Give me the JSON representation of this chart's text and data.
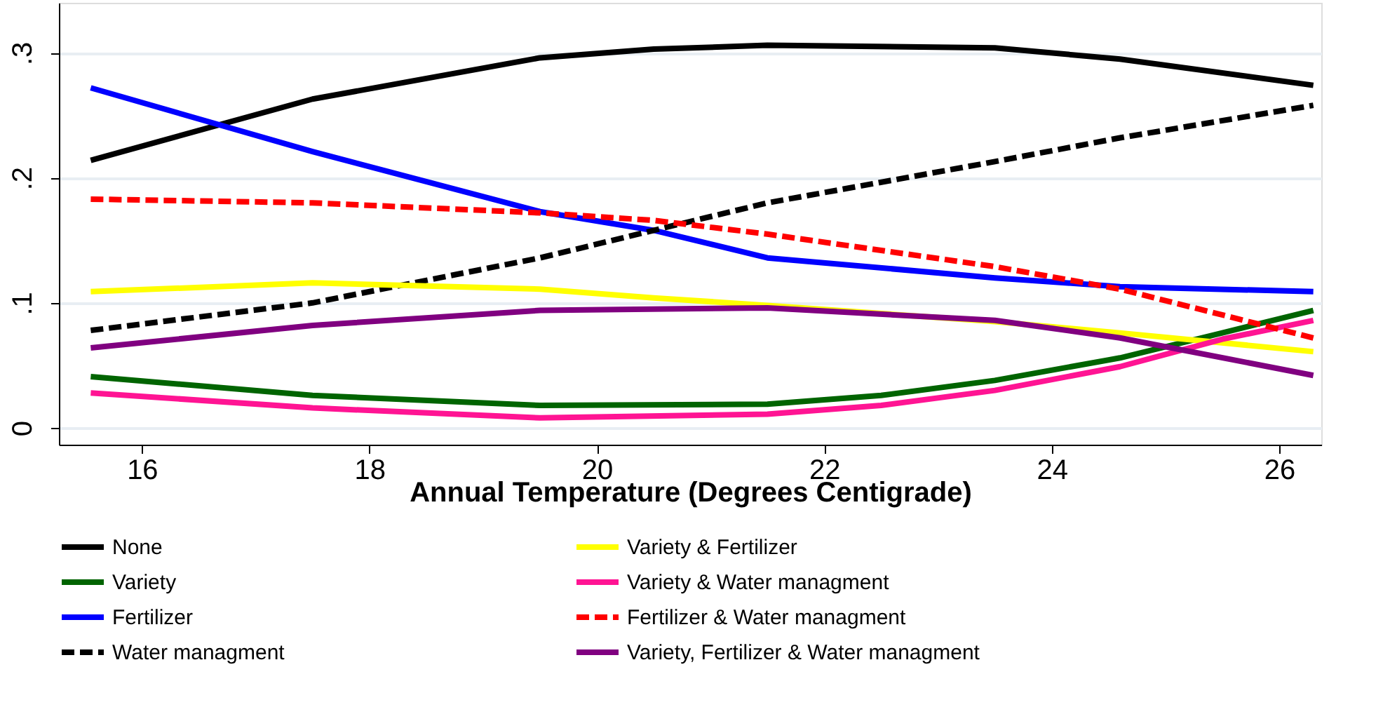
{
  "chart_data": {
    "type": "line",
    "xlabel": "Annual Temperature (Degrees Centigrade)",
    "xlim": [
      15.27,
      26.37
    ],
    "xticks": [
      16,
      18,
      20,
      22,
      24,
      26
    ],
    "ylim": [
      -0.0134,
      0.34
    ],
    "yticks": [
      {
        "value": 0,
        "label": "0"
      },
      {
        "value": 0.1,
        "label": ".1"
      },
      {
        "value": 0.2,
        "label": ".2"
      },
      {
        "value": 0.3,
        "label": ".3"
      }
    ],
    "grid": "y",
    "legend": "bottom",
    "line_style": "solid",
    "series": [
      {
        "name": "None",
        "color": "#000000",
        "x": [
          15.55,
          17.5,
          19.5,
          20.5,
          21.5,
          23.5,
          24.6,
          26.3
        ],
        "values": [
          0.214,
          0.263,
          0.296,
          0.303,
          0.306,
          0.304,
          0.295,
          0.274
        ]
      },
      {
        "name": "Variety",
        "color": "#006400",
        "x": [
          15.55,
          17.5,
          19.5,
          21.5,
          22.5,
          23.5,
          24.6,
          25.5,
          26.3
        ],
        "values": [
          0.041,
          0.026,
          0.018,
          0.019,
          0.026,
          0.038,
          0.056,
          0.076,
          0.094
        ]
      },
      {
        "name": "Fertilizer",
        "color": "#0000ff",
        "x": [
          15.55,
          17.5,
          19.5,
          20.5,
          21.5,
          23.5,
          24.6,
          26.3
        ],
        "values": [
          0.272,
          0.221,
          0.173,
          0.158,
          0.136,
          0.12,
          0.113,
          0.109
        ]
      },
      {
        "name": "Water managment",
        "color": "#000000",
        "line_style": "dashed",
        "x": [
          15.55,
          17.5,
          19.5,
          21.5,
          23.5,
          24.6,
          26.3
        ],
        "values": [
          0.078,
          0.1,
          0.136,
          0.18,
          0.213,
          0.232,
          0.258
        ]
      },
      {
        "name": "Variety & Fertilizer",
        "color": "#ffff00",
        "x": [
          15.55,
          17.5,
          19.5,
          20.5,
          21.5,
          23.5,
          24.6,
          26.3
        ],
        "values": [
          0.109,
          0.116,
          0.111,
          0.104,
          0.098,
          0.085,
          0.076,
          0.061
        ]
      },
      {
        "name": "Variety & Water managment",
        "color": "#ff1493",
        "x": [
          15.55,
          17.5,
          19.5,
          21.5,
          22.5,
          23.5,
          24.6,
          25.5,
          26.3
        ],
        "values": [
          0.028,
          0.016,
          0.008,
          0.011,
          0.018,
          0.03,
          0.049,
          0.071,
          0.086
        ]
      },
      {
        "name": "Fertilizer & Water managment",
        "color": "#ff0000",
        "line_style": "dashed",
        "x": [
          15.55,
          17.5,
          19.5,
          20.5,
          21.5,
          23.5,
          24.6,
          26.3
        ],
        "values": [
          0.183,
          0.18,
          0.172,
          0.166,
          0.155,
          0.129,
          0.111,
          0.072
        ]
      },
      {
        "name": "Variety, Fertilizer & Water managment",
        "color": "#800080",
        "x": [
          15.55,
          17.5,
          19.5,
          21.5,
          23.5,
          24.6,
          26.3
        ],
        "values": [
          0.064,
          0.082,
          0.094,
          0.096,
          0.086,
          0.072,
          0.042
        ]
      }
    ]
  }
}
